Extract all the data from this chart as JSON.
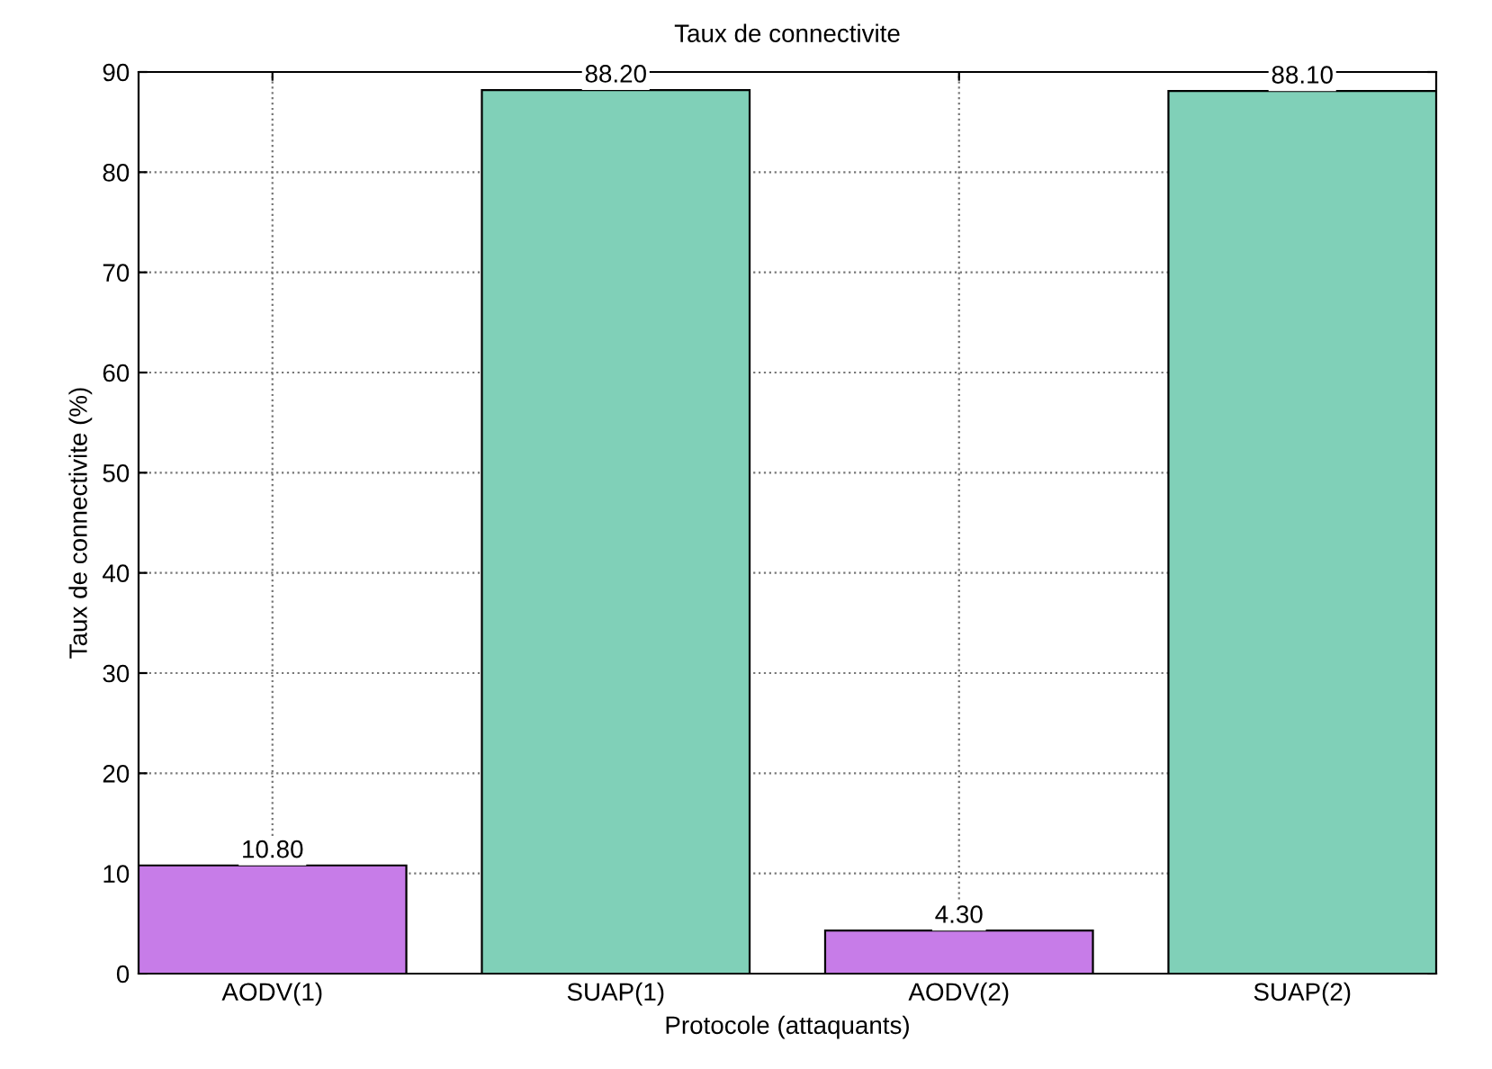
{
  "chart_data": {
    "type": "bar",
    "title": "Taux de connectivite",
    "xlabel": "Protocole (attaquants)",
    "ylabel": "Taux de connectivite (%)",
    "categories": [
      "AODV(1)",
      "SUAP(1)",
      "AODV(2)",
      "SUAP(2)"
    ],
    "values": [
      10.8,
      88.2,
      4.3,
      88.1
    ],
    "colors": [
      "#c77ce8",
      "#80d0b8",
      "#c77ce8",
      "#80d0b8"
    ],
    "value_labels": [
      "10.80",
      "88.20",
      "4.30",
      "88.10"
    ],
    "ylim": [
      0,
      90
    ],
    "yticks": [
      0,
      10,
      20,
      30,
      40,
      50,
      60,
      70,
      80,
      90
    ],
    "grid": true
  }
}
